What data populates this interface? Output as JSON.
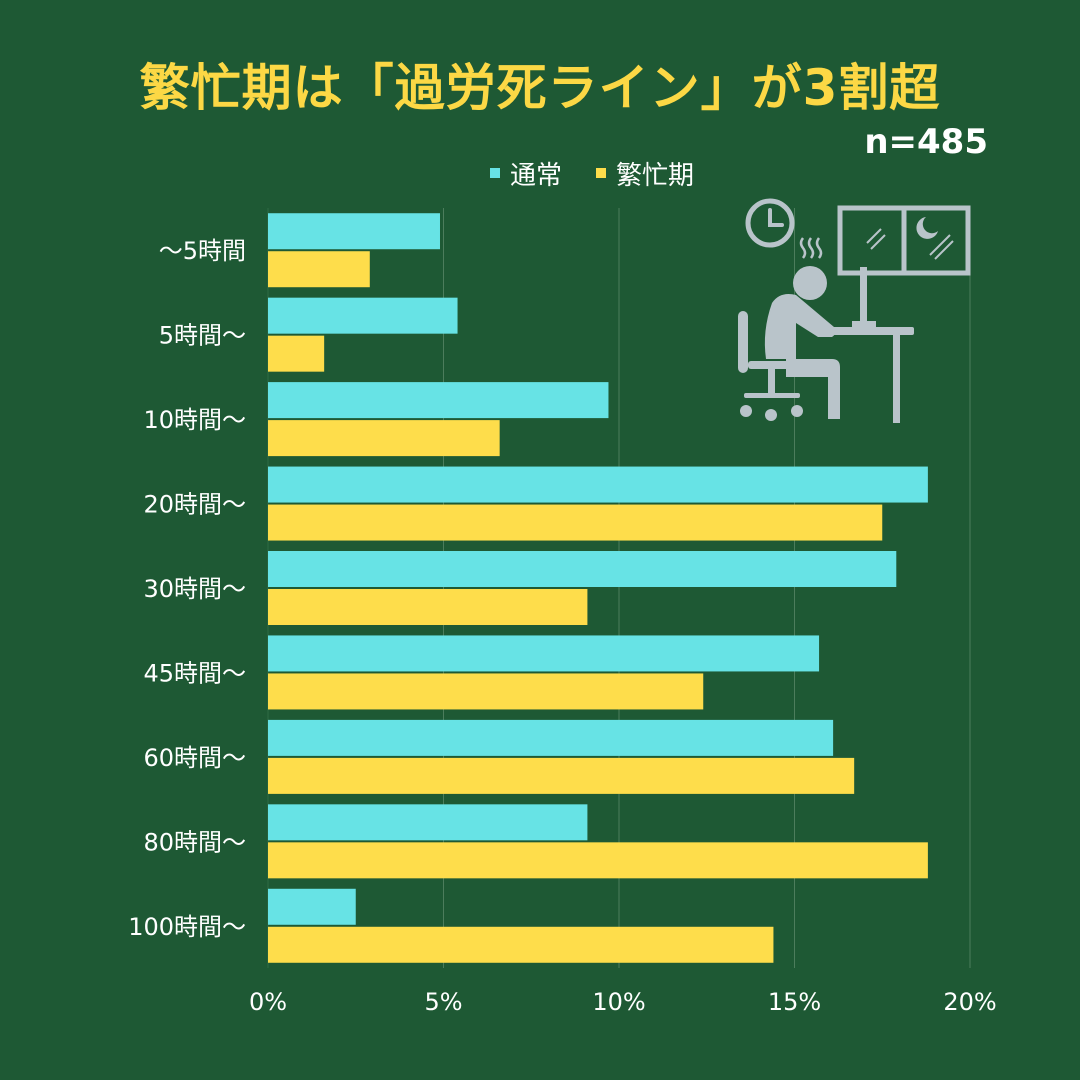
{
  "title": "繁忙期は「過労死ライン」が3割超",
  "sample_size": "n=485",
  "colors": {
    "background": "#1e5934",
    "normal": "#67e3e5",
    "busy": "#fedd4b",
    "title": "#fcd845",
    "grid": "#4c7d5c",
    "illustration": "#b9c4ca"
  },
  "chart_data": {
    "type": "bar",
    "orientation": "horizontal",
    "title": "繁忙期は「過労死ライン」が3割超",
    "categories": [
      "～5時間",
      "5時間～",
      "10時間～",
      "20時間～",
      "30時間～",
      "45時間～",
      "60時間～",
      "80時間～",
      "100時間～"
    ],
    "series": [
      {
        "name": "通常",
        "color": "#67e3e5",
        "values": [
          4.9,
          5.4,
          9.7,
          18.8,
          17.9,
          15.7,
          16.1,
          9.1,
          2.5
        ]
      },
      {
        "name": "繁忙期",
        "color": "#fedd4b",
        "values": [
          2.9,
          1.6,
          6.6,
          17.5,
          9.1,
          12.4,
          16.7,
          18.8,
          14.4
        ]
      }
    ],
    "xticks": [
      "0%",
      "5%",
      "10%",
      "15%",
      "20%"
    ],
    "xlim": [
      0,
      20
    ],
    "grid": true,
    "legend": "top"
  }
}
